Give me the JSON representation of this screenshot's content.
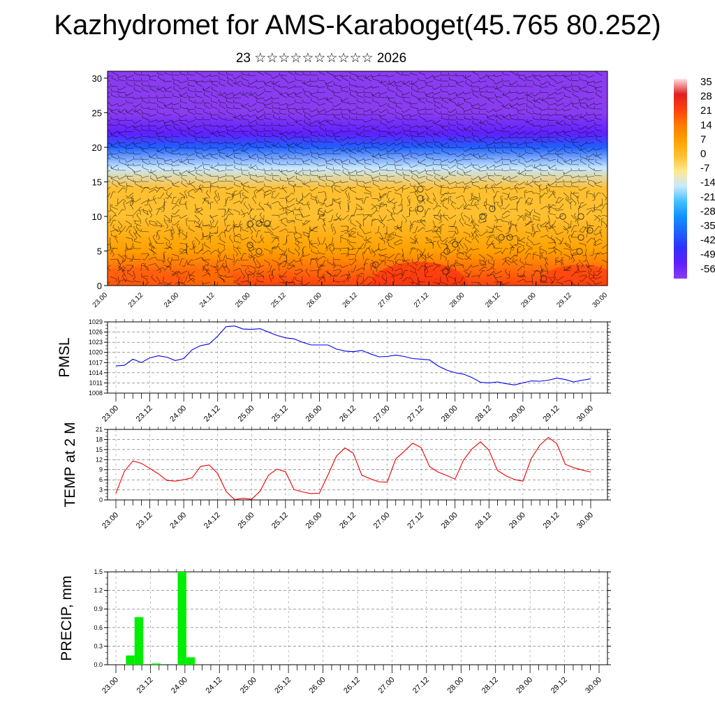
{
  "header": {
    "title": "Kazhydromet for AMS-Karaboget(45.765 80.252)",
    "subtitle": "23 ☆☆☆☆☆☆☆☆☆☆ 2026"
  },
  "time_labels": [
    "23.00",
    "23.12",
    "24.00",
    "24.12",
    "25.00",
    "25.12",
    "26.00",
    "26.12",
    "27.00",
    "27.12",
    "28.00",
    "28.12",
    "29.00",
    "29.12",
    "30.00"
  ],
  "chart_data": [
    {
      "id": "cross_section",
      "type": "heatmap",
      "title": "",
      "xlabel": "",
      "ylabel": "",
      "x_ticks": [
        "23.00",
        "23.12",
        "24.00",
        "24.12",
        "25.00",
        "25.12",
        "26.00",
        "26.12",
        "27.00",
        "27.12",
        "28.00",
        "28.12",
        "29.00",
        "29.12",
        "30.00"
      ],
      "y_ticks": [
        0,
        5,
        10,
        15,
        20,
        25,
        30
      ],
      "ylim": [
        0,
        31
      ],
      "colorbar": {
        "labels": [
          "35",
          "28",
          "21",
          "14",
          "7",
          "0",
          "-7",
          "-14",
          "-21",
          "-28",
          "-35",
          "-42",
          "-49",
          "-56"
        ],
        "colors": [
          "#ffe0e0",
          "#e02020",
          "#ff4010",
          "#ff7a00",
          "#ffa000",
          "#ffc030",
          "#ffe890",
          "#c8e8ff",
          "#40c0ff",
          "#1090ff",
          "#2060ff",
          "#3030ff",
          "#6020ff",
          "#8a3cf0"
        ]
      },
      "temperature_profile": [
        {
          "level": 0,
          "value": 20
        },
        {
          "level": 5,
          "value": 8
        },
        {
          "level": 10,
          "value": 3
        },
        {
          "level": 14,
          "value": -3
        },
        {
          "level": 17,
          "value": -14
        },
        {
          "level": 20,
          "value": -35
        },
        {
          "level": 22,
          "value": -48
        },
        {
          "level": 25,
          "value": -56
        },
        {
          "level": 31,
          "value": -58
        }
      ]
    },
    {
      "id": "pmsl",
      "type": "line",
      "ylabel": "PMSL",
      "y_ticks": [
        1008,
        1011,
        1014,
        1017,
        1020,
        1023,
        1026,
        1029
      ],
      "ylim": [
        1008,
        1029
      ],
      "color": "#0000ee",
      "x": [
        0,
        3,
        6,
        9,
        12,
        15,
        18,
        21,
        24,
        27,
        30,
        33,
        36,
        39,
        42,
        45,
        48,
        51,
        54,
        57,
        60,
        63,
        66,
        69,
        72,
        75,
        78,
        81,
        84,
        87,
        90,
        93,
        96,
        99,
        102,
        105,
        108,
        111,
        114,
        117,
        120,
        123,
        126,
        129,
        132,
        135,
        138,
        141,
        144,
        147,
        150,
        153,
        156,
        159,
        162,
        165,
        168
      ],
      "values": [
        1016,
        1016.2,
        1018,
        1017,
        1018.4,
        1019,
        1018.6,
        1017.6,
        1018.2,
        1020.8,
        1022,
        1022.5,
        1024.8,
        1027.6,
        1027.8,
        1026.9,
        1026.8,
        1027,
        1026,
        1025,
        1024.3,
        1024,
        1023,
        1022.2,
        1022.2,
        1022.2,
        1021,
        1020.4,
        1020.2,
        1020.6,
        1019.6,
        1018.7,
        1018.8,
        1019.2,
        1018.8,
        1018.2,
        1018,
        1017.8,
        1016,
        1014.8,
        1014,
        1013.6,
        1012.6,
        1011.2,
        1011,
        1011.3,
        1010.8,
        1010.4,
        1011,
        1011.6,
        1011.5,
        1011.8,
        1012.4,
        1012,
        1011.3,
        1011.8,
        1012.2
      ]
    },
    {
      "id": "temp",
      "type": "line",
      "ylabel": "TEMP at 2 M",
      "y_ticks": [
        0,
        3,
        6,
        9,
        12,
        15,
        18,
        21
      ],
      "ylim": [
        0,
        21
      ],
      "color": "#ee0000",
      "x": [
        0,
        3,
        6,
        9,
        12,
        15,
        18,
        21,
        24,
        27,
        30,
        33,
        36,
        39,
        42,
        45,
        48,
        51,
        54,
        57,
        60,
        63,
        66,
        69,
        72,
        75,
        78,
        81,
        84,
        87,
        90,
        93,
        96,
        99,
        102,
        105,
        108,
        111,
        114,
        117,
        120,
        123,
        126,
        129,
        132,
        135,
        138,
        141,
        144,
        147,
        150,
        153,
        156,
        159,
        162,
        165,
        168
      ],
      "values": [
        2,
        8.5,
        11.6,
        10.9,
        9.4,
        7.8,
        5.8,
        5.6,
        6,
        6.6,
        10,
        10.4,
        7.9,
        2.5,
        0.1,
        0.5,
        0.2,
        2.6,
        7.4,
        9.2,
        8.4,
        3.1,
        2.4,
        1.9,
        2,
        7.4,
        13,
        15.5,
        13.9,
        7.4,
        6.3,
        5.4,
        5.3,
        12.2,
        14.5,
        16.9,
        15.6,
        9.9,
        8.3,
        7.3,
        6.2,
        11.9,
        15.2,
        17.3,
        14.8,
        8.8,
        7.2,
        6.1,
        5.6,
        12.4,
        16.3,
        18.6,
        16.8,
        10.6,
        9.6,
        8.9,
        8.3
      ]
    },
    {
      "id": "precip",
      "type": "bar",
      "ylabel": "PRECIP, mm",
      "y_ticks": [
        "0.0",
        "0.3",
        "0.6",
        "0.9",
        "1.2",
        "1.5"
      ],
      "ylim": [
        0,
        1.5
      ],
      "color": "#00ee00",
      "bars": [
        {
          "x": 3,
          "value": 0.15
        },
        {
          "x": 6,
          "value": 0.77
        },
        {
          "x": 12,
          "value": 0.02
        },
        {
          "x": 21,
          "value": 1.5
        },
        {
          "x": 24,
          "value": 0.12
        }
      ]
    }
  ]
}
